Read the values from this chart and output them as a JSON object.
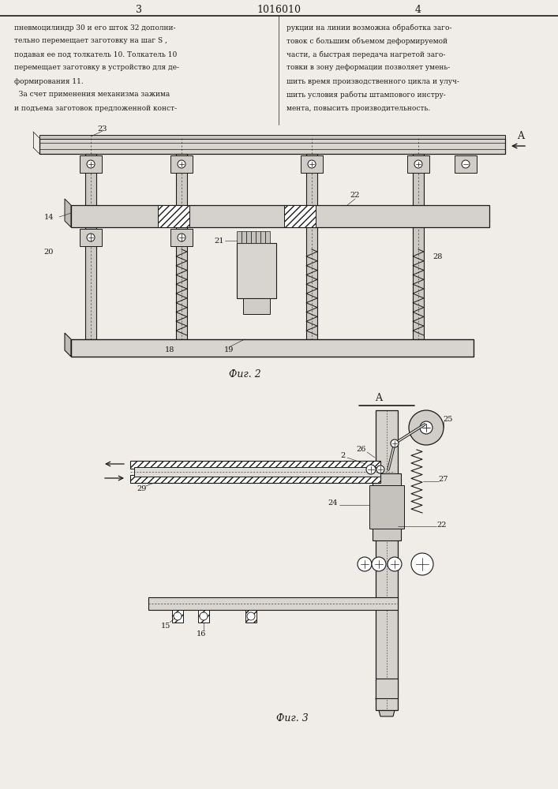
{
  "page_width": 7.07,
  "page_height": 10.0,
  "bg_color": "#f0ede8",
  "header_patent_num": "1016010",
  "header_col_left": "3",
  "header_col_right": "4",
  "text_left": "пневмоцилиндр 30 и его шток 32 дополни-\nтельно перемещает заготовку на шаг S ,\nподавая ее под толкатель 10. Толкатель 10\nперемещает заготовку в устройство для де-\nформирования 11.\n  За счет применения механизма зажима\nи подъема заготовок предложенной конст-",
  "text_right": "рукции на линии возможна обработка заго-\nтовок с большим объемом деформируемой\nчасти, а быстрая передача нагретой заго-\nтовки в зону деформации позволяет умень-\nшить время производственного цикла и улуч-\nшить условия работы штампового инстру-\nмента, повысить производительность.",
  "fig2_caption": "Фиг. 2",
  "fig3_caption": "Фиг. 3",
  "line_color": "#1a1a1a",
  "label_fontsize": 7,
  "caption_fontsize": 9,
  "text_fontsize": 6.5
}
